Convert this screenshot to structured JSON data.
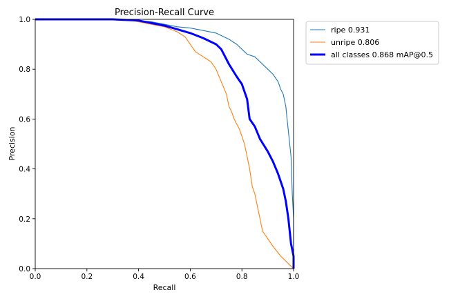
{
  "chart_data": {
    "type": "line",
    "title": "Precision-Recall Curve",
    "xlabel": "Recall",
    "ylabel": "Precision",
    "xlim": [
      0.0,
      1.0
    ],
    "ylim": [
      0.0,
      1.0
    ],
    "xticks": [
      "0.0",
      "0.2",
      "0.4",
      "0.6",
      "0.8",
      "1.0"
    ],
    "yticks": [
      "0.0",
      "0.2",
      "0.4",
      "0.6",
      "0.8",
      "1.0"
    ],
    "grid": false,
    "legend_position": "outside-top-right",
    "series": [
      {
        "name": "ripe 0.931",
        "color": "#1f77b4",
        "style": "thin",
        "x": [
          0.0,
          0.3,
          0.4,
          0.45,
          0.5,
          0.55,
          0.6,
          0.65,
          0.7,
          0.72,
          0.75,
          0.78,
          0.8,
          0.82,
          0.85,
          0.87,
          0.9,
          0.92,
          0.94,
          0.95,
          0.96,
          0.97,
          0.975,
          0.98,
          0.985,
          0.99,
          0.995,
          1.0,
          1.0
        ],
        "y": [
          1.0,
          1.0,
          0.995,
          0.99,
          0.98,
          0.97,
          0.965,
          0.955,
          0.945,
          0.935,
          0.92,
          0.9,
          0.88,
          0.86,
          0.85,
          0.83,
          0.8,
          0.78,
          0.75,
          0.72,
          0.7,
          0.65,
          0.6,
          0.55,
          0.5,
          0.45,
          0.3,
          0.2,
          0.0
        ]
      },
      {
        "name": "unripe 0.806",
        "color": "#ff7f0e",
        "style": "thin",
        "x": [
          0.0,
          0.35,
          0.4,
          0.45,
          0.5,
          0.55,
          0.58,
          0.6,
          0.62,
          0.65,
          0.68,
          0.7,
          0.72,
          0.74,
          0.75,
          0.76,
          0.77,
          0.78,
          0.79,
          0.8,
          0.81,
          0.82,
          0.83,
          0.84,
          0.85,
          0.86,
          0.87,
          0.88,
          0.9,
          0.92,
          0.95,
          0.98,
          1.0
        ],
        "y": [
          1.0,
          1.0,
          0.99,
          0.98,
          0.97,
          0.95,
          0.93,
          0.9,
          0.87,
          0.85,
          0.83,
          0.8,
          0.75,
          0.7,
          0.65,
          0.63,
          0.6,
          0.58,
          0.56,
          0.53,
          0.5,
          0.45,
          0.4,
          0.33,
          0.3,
          0.25,
          0.2,
          0.15,
          0.12,
          0.09,
          0.05,
          0.02,
          0.0
        ]
      },
      {
        "name": "all classes 0.868 mAP@0.5",
        "color": "#0000ff",
        "style": "thick",
        "x": [
          0.0,
          0.3,
          0.4,
          0.45,
          0.5,
          0.55,
          0.6,
          0.65,
          0.7,
          0.72,
          0.75,
          0.78,
          0.8,
          0.82,
          0.83,
          0.85,
          0.87,
          0.9,
          0.92,
          0.94,
          0.96,
          0.97,
          0.98,
          0.99,
          1.0,
          1.0
        ],
        "y": [
          1.0,
          1.0,
          0.995,
          0.985,
          0.975,
          0.96,
          0.945,
          0.925,
          0.9,
          0.88,
          0.82,
          0.77,
          0.74,
          0.68,
          0.6,
          0.57,
          0.52,
          0.47,
          0.43,
          0.38,
          0.32,
          0.27,
          0.2,
          0.1,
          0.05,
          0.0
        ]
      }
    ]
  }
}
